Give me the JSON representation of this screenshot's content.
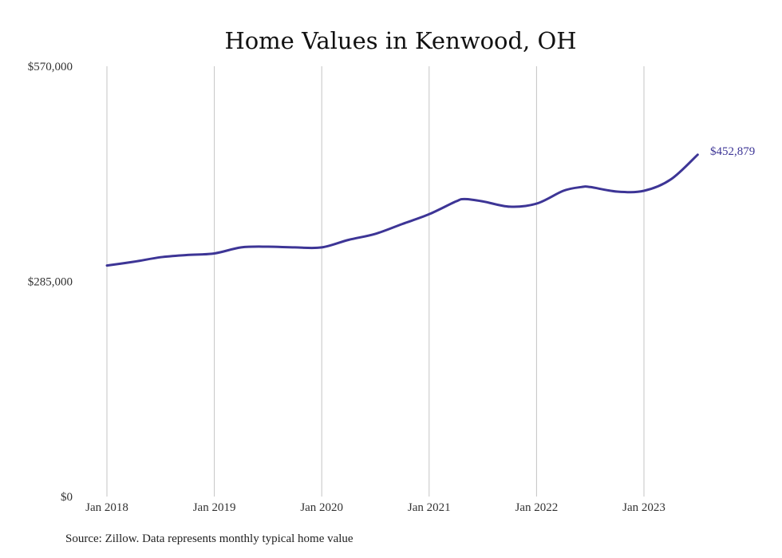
{
  "chart_data": {
    "type": "line",
    "title": "Home Values in Kenwood, OH",
    "xlabel": "",
    "ylabel": "",
    "x_ticks": [
      "Jan 2018",
      "Jan 2019",
      "Jan 2020",
      "Jan 2021",
      "Jan 2022",
      "Jan 2023"
    ],
    "y_ticks": [
      "$0",
      "$285,000",
      "$570,000"
    ],
    "ylim": [
      0,
      570000
    ],
    "xlim": [
      "2018-01",
      "2023-07"
    ],
    "grid": "vertical",
    "line_color": "#3d3596",
    "end_label": "$452,879",
    "series": [
      {
        "x": [
          "2018-01",
          "2018-04",
          "2018-07",
          "2018-10",
          "2019-01",
          "2019-04",
          "2019-07",
          "2019-10",
          "2020-01",
          "2020-04",
          "2020-07",
          "2020-10",
          "2021-01",
          "2021-04",
          "2021-05",
          "2021-07",
          "2021-10",
          "2022-01",
          "2022-04",
          "2022-06",
          "2022-07",
          "2022-10",
          "2023-01",
          "2023-04",
          "2023-07"
        ],
        "values": [
          306000,
          311000,
          317000,
          320000,
          322000,
          330000,
          331000,
          330000,
          330000,
          340000,
          348000,
          361000,
          374000,
          391000,
          394000,
          391000,
          384000,
          388000,
          405000,
          410000,
          410000,
          404000,
          405000,
          420000,
          452879
        ]
      }
    ]
  },
  "footer": {
    "source": "Source: Zillow. Data represents monthly typical home value"
  }
}
